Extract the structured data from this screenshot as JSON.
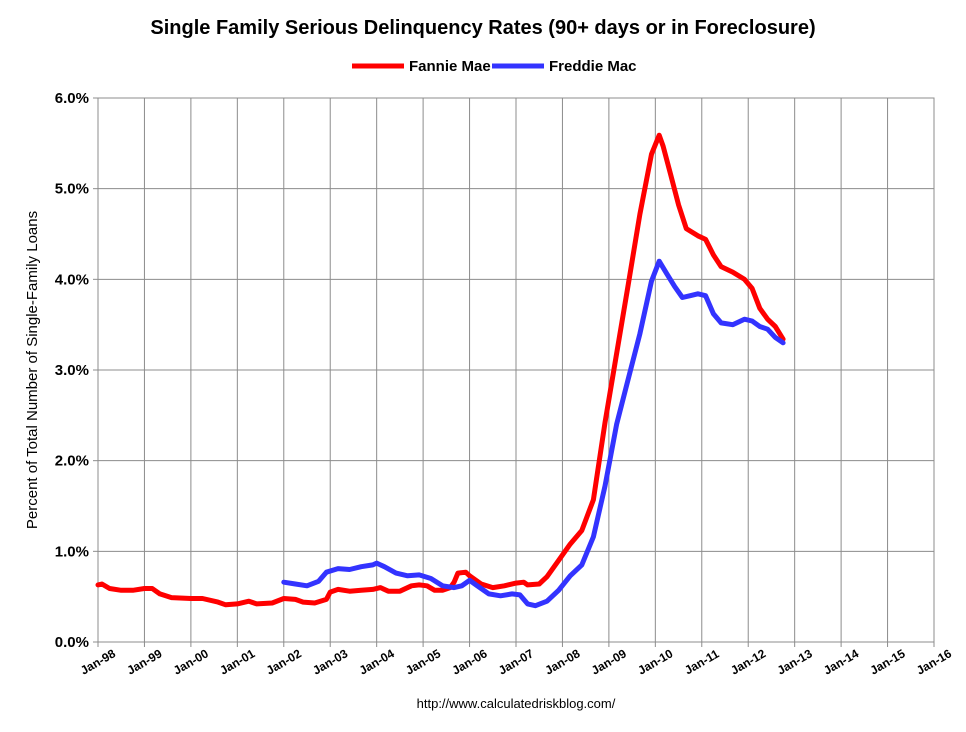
{
  "chart_data": {
    "type": "line",
    "title": "Single Family Serious Delinquency Rates (90+ days or in Foreclosure)",
    "ylabel": "Percent of Total Number of Single-Family Loans",
    "xlabel": "",
    "x_range": [
      "1998-01",
      "2016-01"
    ],
    "ylim": [
      0,
      6
    ],
    "y_ticks": [
      "0.0%",
      "1.0%",
      "2.0%",
      "3.0%",
      "4.0%",
      "5.0%",
      "6.0%"
    ],
    "x_ticks": [
      "Jan-98",
      "Jan-99",
      "Jan-00",
      "Jan-01",
      "Jan-02",
      "Jan-03",
      "Jan-04",
      "Jan-05",
      "Jan-06",
      "Jan-07",
      "Jan-08",
      "Jan-09",
      "Jan-10",
      "Jan-11",
      "Jan-12",
      "Jan-13",
      "Jan-14",
      "Jan-15",
      "Jan-16"
    ],
    "grid": true,
    "legend_position": "top-center",
    "source": "http://www.calculatedriskblog.com/",
    "series": [
      {
        "name": "Fannie Mae",
        "color": "#ff0000",
        "points": [
          [
            "1998-01",
            0.63
          ],
          [
            "1998-02",
            0.64
          ],
          [
            "1998-04",
            0.59
          ],
          [
            "1998-07",
            0.57
          ],
          [
            "1998-10",
            0.57
          ],
          [
            "1999-01",
            0.59
          ],
          [
            "1999-03",
            0.59
          ],
          [
            "1999-05",
            0.53
          ],
          [
            "1999-08",
            0.49
          ],
          [
            "2000-01",
            0.48
          ],
          [
            "2000-04",
            0.48
          ],
          [
            "2000-08",
            0.44
          ],
          [
            "2000-10",
            0.41
          ],
          [
            "2001-01",
            0.42
          ],
          [
            "2001-04",
            0.45
          ],
          [
            "2001-06",
            0.42
          ],
          [
            "2001-10",
            0.43
          ],
          [
            "2002-01",
            0.48
          ],
          [
            "2002-04",
            0.47
          ],
          [
            "2002-06",
            0.44
          ],
          [
            "2002-09",
            0.43
          ],
          [
            "2002-12",
            0.47
          ],
          [
            "2003-01",
            0.55
          ],
          [
            "2003-03",
            0.58
          ],
          [
            "2003-06",
            0.56
          ],
          [
            "2003-09",
            0.57
          ],
          [
            "2003-12",
            0.58
          ],
          [
            "2004-02",
            0.6
          ],
          [
            "2004-04",
            0.56
          ],
          [
            "2004-07",
            0.56
          ],
          [
            "2004-10",
            0.62
          ],
          [
            "2004-12",
            0.63
          ],
          [
            "2005-02",
            0.62
          ],
          [
            "2005-04",
            0.57
          ],
          [
            "2005-06",
            0.57
          ],
          [
            "2005-08",
            0.6
          ],
          [
            "2005-09",
            0.66
          ],
          [
            "2005-10",
            0.76
          ],
          [
            "2005-12",
            0.77
          ],
          [
            "2006-01",
            0.73
          ],
          [
            "2006-04",
            0.64
          ],
          [
            "2006-07",
            0.6
          ],
          [
            "2006-10",
            0.62
          ],
          [
            "2007-01",
            0.65
          ],
          [
            "2007-03",
            0.66
          ],
          [
            "2007-04",
            0.63
          ],
          [
            "2007-07",
            0.64
          ],
          [
            "2007-09",
            0.72
          ],
          [
            "2007-12",
            0.9
          ],
          [
            "2008-03",
            1.08
          ],
          [
            "2008-06",
            1.23
          ],
          [
            "2008-09",
            1.57
          ],
          [
            "2008-12",
            2.42
          ],
          [
            "2009-03",
            3.18
          ],
          [
            "2009-06",
            3.94
          ],
          [
            "2009-09",
            4.72
          ],
          [
            "2009-12",
            5.38
          ],
          [
            "2010-02",
            5.59
          ],
          [
            "2010-03",
            5.47
          ],
          [
            "2010-05",
            5.15
          ],
          [
            "2010-07",
            4.82
          ],
          [
            "2010-09",
            4.56
          ],
          [
            "2010-12",
            4.48
          ],
          [
            "2011-02",
            4.44
          ],
          [
            "2011-04",
            4.27
          ],
          [
            "2011-06",
            4.14
          ],
          [
            "2011-09",
            4.08
          ],
          [
            "2011-12",
            4.0
          ],
          [
            "2012-02",
            3.9
          ],
          [
            "2012-04",
            3.68
          ],
          [
            "2012-06",
            3.56
          ],
          [
            "2012-08",
            3.48
          ],
          [
            "2012-09",
            3.41
          ],
          [
            "2012-10",
            3.34
          ]
        ]
      },
      {
        "name": "Freddie Mac",
        "color": "#3333ff",
        "points": [
          [
            "2002-01",
            0.66
          ],
          [
            "2002-04",
            0.64
          ],
          [
            "2002-07",
            0.62
          ],
          [
            "2002-10",
            0.67
          ],
          [
            "2002-12",
            0.77
          ],
          [
            "2003-03",
            0.81
          ],
          [
            "2003-06",
            0.8
          ],
          [
            "2003-09",
            0.83
          ],
          [
            "2003-12",
            0.85
          ],
          [
            "2004-01",
            0.87
          ],
          [
            "2004-03",
            0.83
          ],
          [
            "2004-06",
            0.76
          ],
          [
            "2004-09",
            0.73
          ],
          [
            "2004-12",
            0.74
          ],
          [
            "2005-03",
            0.7
          ],
          [
            "2005-06",
            0.62
          ],
          [
            "2005-09",
            0.6
          ],
          [
            "2005-11",
            0.62
          ],
          [
            "2006-01",
            0.68
          ],
          [
            "2006-03",
            0.62
          ],
          [
            "2006-06",
            0.53
          ],
          [
            "2006-09",
            0.51
          ],
          [
            "2006-12",
            0.53
          ],
          [
            "2007-02",
            0.52
          ],
          [
            "2007-04",
            0.42
          ],
          [
            "2007-06",
            0.4
          ],
          [
            "2007-09",
            0.45
          ],
          [
            "2007-12",
            0.57
          ],
          [
            "2008-03",
            0.73
          ],
          [
            "2008-06",
            0.85
          ],
          [
            "2008-09",
            1.16
          ],
          [
            "2008-12",
            1.72
          ],
          [
            "2009-03",
            2.4
          ],
          [
            "2009-06",
            2.9
          ],
          [
            "2009-09",
            3.4
          ],
          [
            "2009-12",
            3.98
          ],
          [
            "2010-02",
            4.2
          ],
          [
            "2010-04",
            4.06
          ],
          [
            "2010-06",
            3.92
          ],
          [
            "2010-08",
            3.8
          ],
          [
            "2010-10",
            3.82
          ],
          [
            "2010-12",
            3.84
          ],
          [
            "2011-02",
            3.82
          ],
          [
            "2011-04",
            3.62
          ],
          [
            "2011-06",
            3.52
          ],
          [
            "2011-09",
            3.5
          ],
          [
            "2011-12",
            3.56
          ],
          [
            "2012-02",
            3.54
          ],
          [
            "2012-04",
            3.48
          ],
          [
            "2012-06",
            3.45
          ],
          [
            "2012-08",
            3.36
          ],
          [
            "2012-10",
            3.3
          ]
        ]
      }
    ]
  }
}
